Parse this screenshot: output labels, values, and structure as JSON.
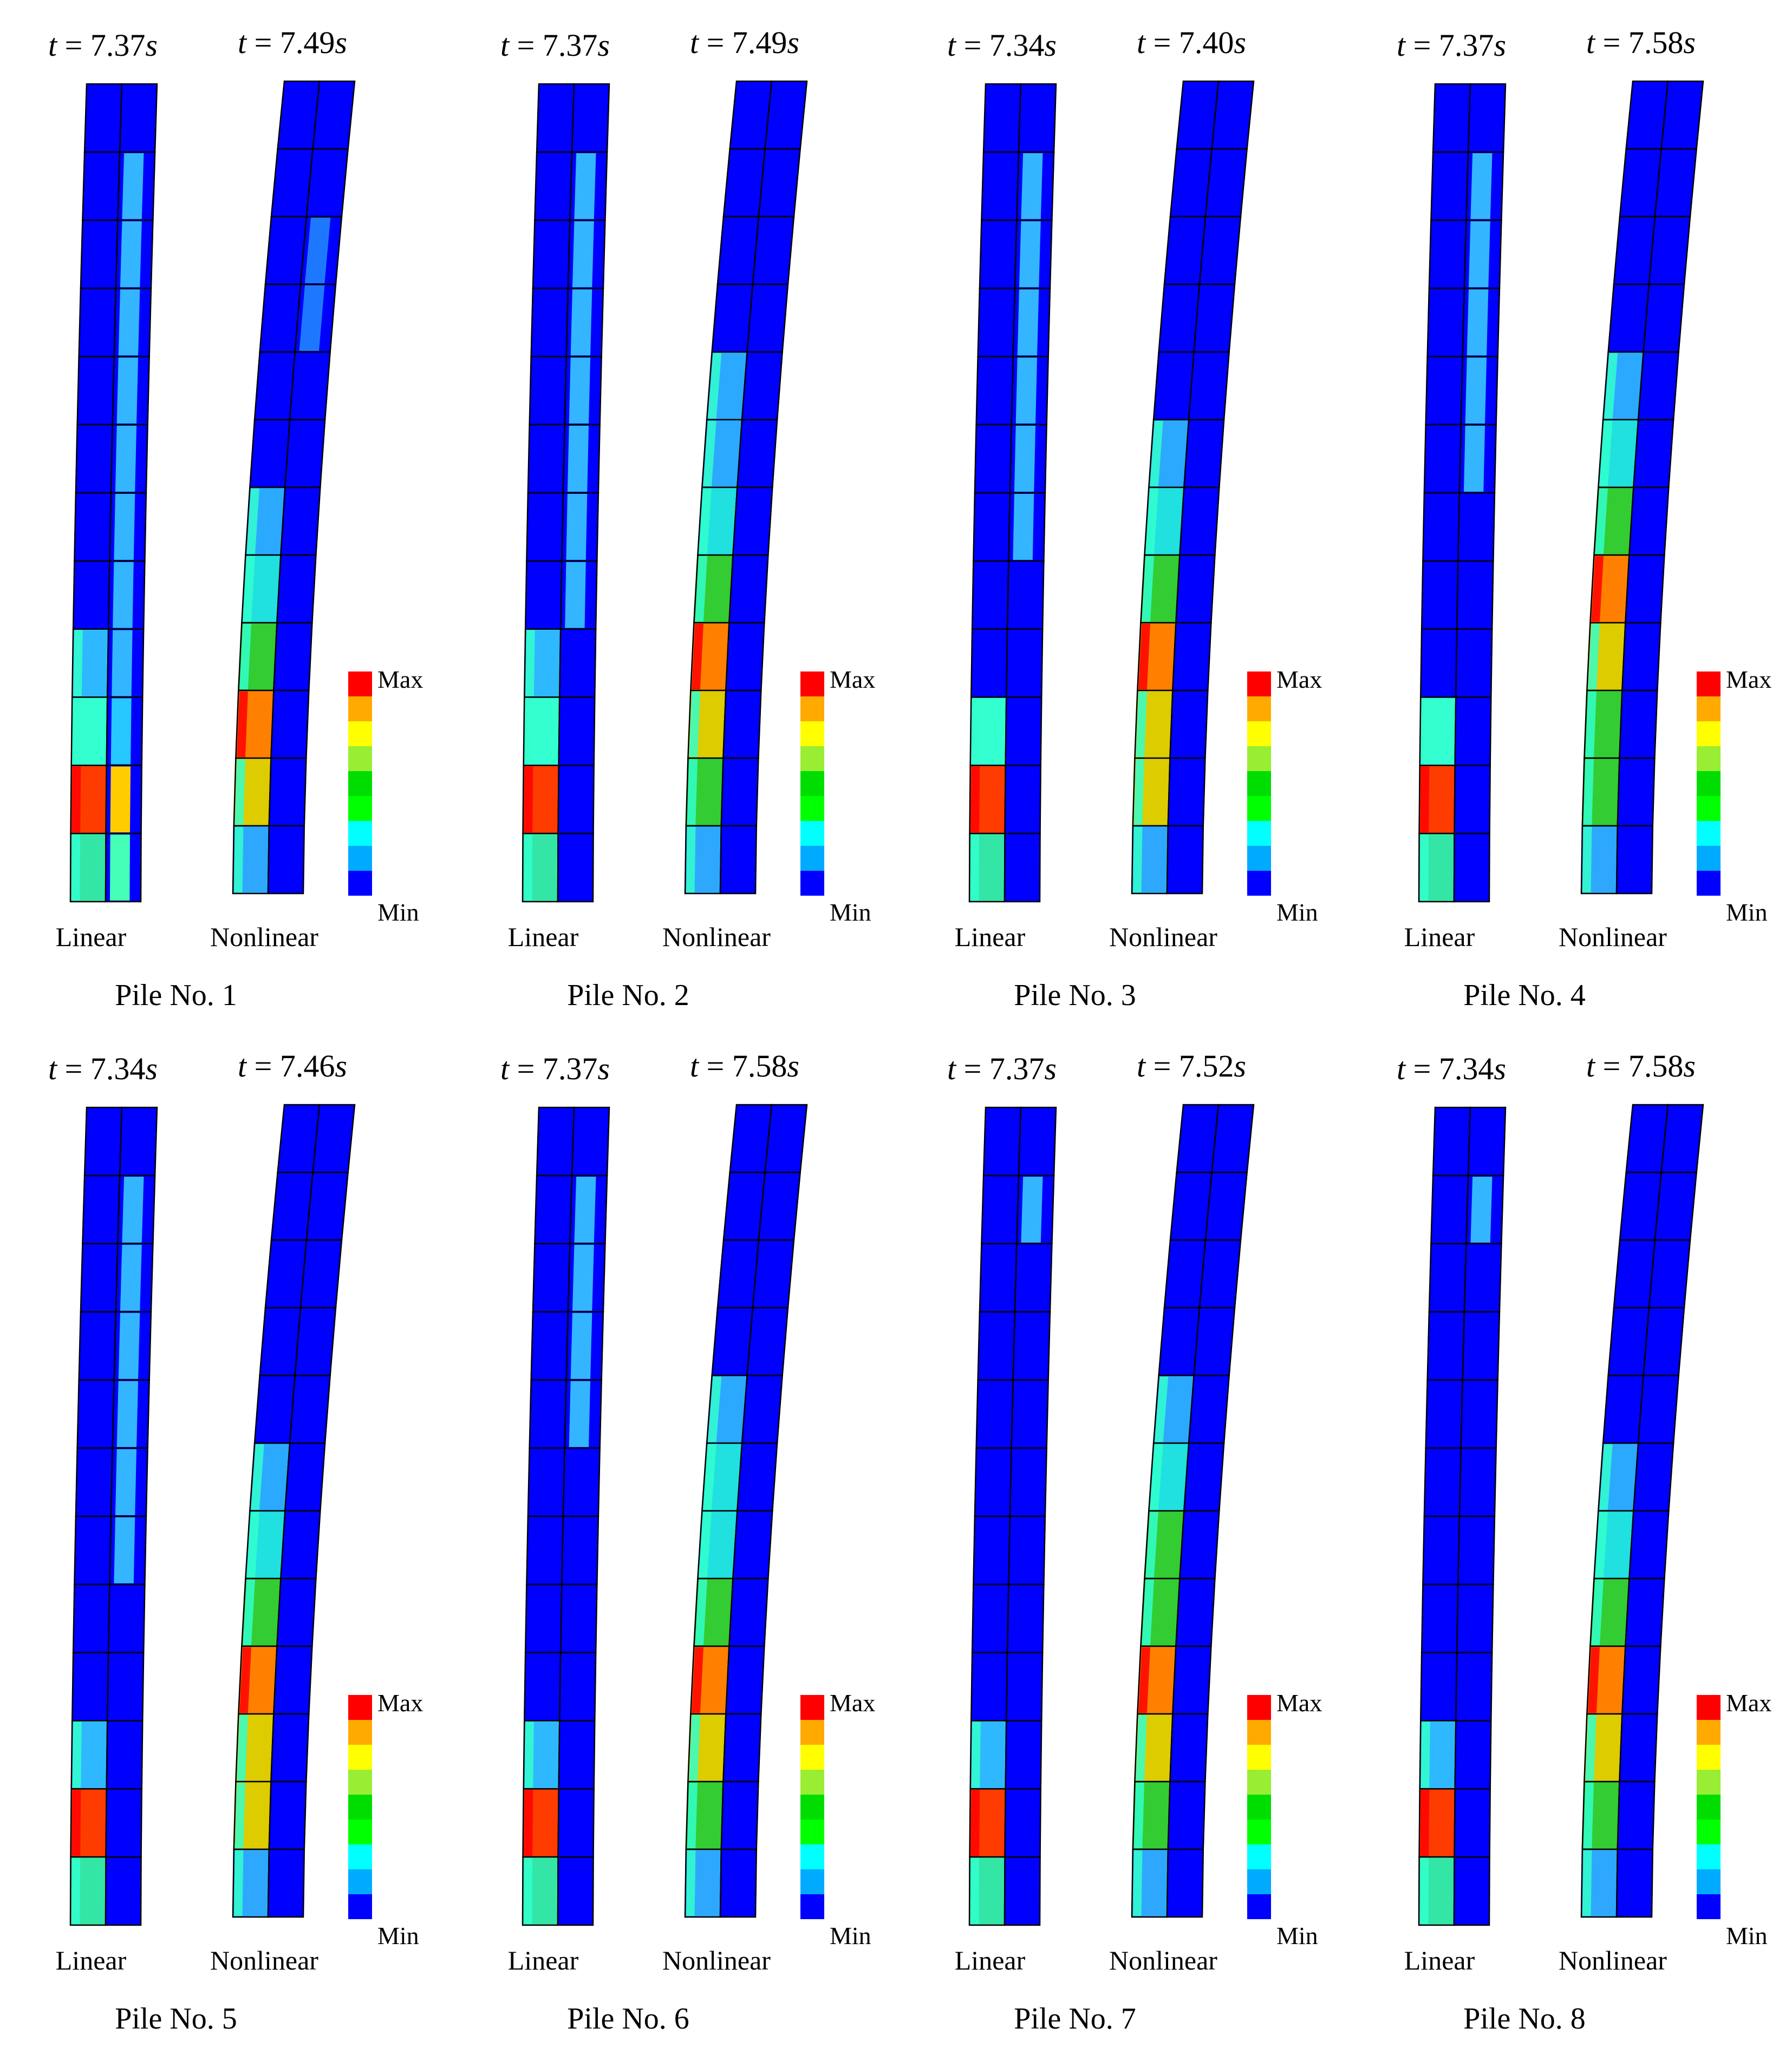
{
  "panels": [
    {
      "pile_label": "Pile No. 1",
      "linear_time": "7.37",
      "nonlinear_time": "7.49",
      "linear_colors": [
        "#0000ff",
        "#0000ff",
        "#0000ff",
        "#0000ff",
        "#0000ff",
        "#0000ff",
        "#0000ff",
        "#0000ff",
        "#2eb8ff",
        "#33ffd0",
        "#ff3c00",
        "#33e6a5"
      ],
      "linear_strip": [
        "#0000ff",
        "#33b5ff",
        "#33b5ff",
        "#33b5ff",
        "#33b5ff",
        "#33b5ff",
        "#33b5ff",
        "#33b5ff",
        "#33b5ff",
        "#26c8ff",
        "#ffcc00",
        "#46ffb6"
      ],
      "nonlinear_colors": [
        "#0000ff",
        "#0000ff",
        "#0000ff",
        "#0000ff",
        "#0000ff",
        "#0000ff",
        "#2ba9ff",
        "#20e0e0",
        "#33cc33",
        "#ff8000",
        "#ddcc00",
        "#2ea8ff"
      ],
      "nonlinear_strip": [
        "#0000ff",
        "#0000ff",
        "#1e78ff",
        "#1e78ff",
        "#0000ff",
        "#0000ff",
        "#0000ff",
        "#0000ff",
        "#0000ff",
        "#0000ff",
        "#0000ff",
        "#0000ff"
      ]
    },
    {
      "pile_label": "Pile No. 2",
      "linear_time": "7.37",
      "nonlinear_time": "7.49",
      "linear_colors": [
        "#0000ff",
        "#0000ff",
        "#0000ff",
        "#0000ff",
        "#0000ff",
        "#0000ff",
        "#0000ff",
        "#0000ff",
        "#2eb8ff",
        "#33ffd0",
        "#ff3c00",
        "#33e6a5"
      ],
      "linear_strip": [
        "#0000ff",
        "#33b5ff",
        "#33b5ff",
        "#33b5ff",
        "#33b5ff",
        "#33b5ff",
        "#33b5ff",
        "#33b5ff",
        "#0000ff",
        "#0000ff",
        "#0000ff",
        "#0000ff"
      ],
      "nonlinear_colors": [
        "#0000ff",
        "#0000ff",
        "#0000ff",
        "#0000ff",
        "#2ba9ff",
        "#2ba9ff",
        "#20e0e0",
        "#33cc33",
        "#ff8000",
        "#ddcc00",
        "#33cc33",
        "#2ea8ff"
      ],
      "nonlinear_strip": [
        "#0000ff",
        "#0000ff",
        "#0000ff",
        "#0000ff",
        "#0000ff",
        "#0000ff",
        "#0000ff",
        "#0000ff",
        "#0000ff",
        "#0000ff",
        "#0000ff",
        "#0000ff"
      ]
    },
    {
      "pile_label": "Pile No. 3",
      "linear_time": "7.34",
      "nonlinear_time": "7.40",
      "linear_colors": [
        "#0000ff",
        "#0000ff",
        "#0000ff",
        "#0000ff",
        "#0000ff",
        "#0000ff",
        "#0000ff",
        "#0000ff",
        "#0000ff",
        "#33ffd0",
        "#ff3c00",
        "#33e6a5"
      ],
      "linear_strip": [
        "#0000ff",
        "#33b5ff",
        "#33b5ff",
        "#33b5ff",
        "#33b5ff",
        "#33b5ff",
        "#33b5ff",
        "#0000ff",
        "#0000ff",
        "#0000ff",
        "#0000ff",
        "#0000ff"
      ],
      "nonlinear_colors": [
        "#0000ff",
        "#0000ff",
        "#0000ff",
        "#0000ff",
        "#0000ff",
        "#2ba9ff",
        "#20e0e0",
        "#33cc33",
        "#ff8000",
        "#ddcc00",
        "#ddcc00",
        "#2ea8ff"
      ],
      "nonlinear_strip": [
        "#0000ff",
        "#0000ff",
        "#0000ff",
        "#0000ff",
        "#0000ff",
        "#0000ff",
        "#0000ff",
        "#0000ff",
        "#0000ff",
        "#0000ff",
        "#0000ff",
        "#0000ff"
      ]
    },
    {
      "pile_label": "Pile No. 4",
      "linear_time": "7.37",
      "nonlinear_time": "7.58",
      "linear_colors": [
        "#0000ff",
        "#0000ff",
        "#0000ff",
        "#0000ff",
        "#0000ff",
        "#0000ff",
        "#0000ff",
        "#0000ff",
        "#0000ff",
        "#33ffd0",
        "#ff3c00",
        "#33e6a5"
      ],
      "linear_strip": [
        "#0000ff",
        "#33b5ff",
        "#33b5ff",
        "#33b5ff",
        "#33b5ff",
        "#33b5ff",
        "#0000ff",
        "#0000ff",
        "#0000ff",
        "#0000ff",
        "#0000ff",
        "#0000ff"
      ],
      "nonlinear_colors": [
        "#0000ff",
        "#0000ff",
        "#0000ff",
        "#0000ff",
        "#2ba9ff",
        "#20e0e0",
        "#33cc33",
        "#ff8000",
        "#ddcc00",
        "#33cc33",
        "#33cc33",
        "#2ea8ff"
      ],
      "nonlinear_strip": [
        "#0000ff",
        "#0000ff",
        "#0000ff",
        "#0000ff",
        "#0000ff",
        "#0000ff",
        "#0000ff",
        "#0000ff",
        "#0000ff",
        "#0000ff",
        "#0000ff",
        "#0000ff"
      ]
    },
    {
      "pile_label": "Pile No. 5",
      "linear_time": "7.34",
      "nonlinear_time": "7.46",
      "linear_colors": [
        "#0000ff",
        "#0000ff",
        "#0000ff",
        "#0000ff",
        "#0000ff",
        "#0000ff",
        "#0000ff",
        "#0000ff",
        "#0000ff",
        "#2eb8ff",
        "#ff3c00",
        "#33e6a5"
      ],
      "linear_strip": [
        "#0000ff",
        "#33b5ff",
        "#33b5ff",
        "#33b5ff",
        "#33b5ff",
        "#33b5ff",
        "#33b5ff",
        "#0000ff",
        "#0000ff",
        "#0000ff",
        "#0000ff",
        "#0000ff"
      ],
      "nonlinear_colors": [
        "#0000ff",
        "#0000ff",
        "#0000ff",
        "#0000ff",
        "#0000ff",
        "#2ba9ff",
        "#20e0e0",
        "#33cc33",
        "#ff8000",
        "#ddcc00",
        "#ddcc00",
        "#2ea8ff"
      ],
      "nonlinear_strip": [
        "#0000ff",
        "#0000ff",
        "#0000ff",
        "#0000ff",
        "#0000ff",
        "#0000ff",
        "#0000ff",
        "#0000ff",
        "#0000ff",
        "#0000ff",
        "#0000ff",
        "#0000ff"
      ]
    },
    {
      "pile_label": "Pile No. 6",
      "linear_time": "7.37",
      "nonlinear_time": "7.58",
      "linear_colors": [
        "#0000ff",
        "#0000ff",
        "#0000ff",
        "#0000ff",
        "#0000ff",
        "#0000ff",
        "#0000ff",
        "#0000ff",
        "#0000ff",
        "#2eb8ff",
        "#ff3c00",
        "#33e6a5"
      ],
      "linear_strip": [
        "#0000ff",
        "#33b5ff",
        "#33b5ff",
        "#33b5ff",
        "#33b5ff",
        "#0000ff",
        "#0000ff",
        "#0000ff",
        "#0000ff",
        "#0000ff",
        "#0000ff",
        "#0000ff"
      ],
      "nonlinear_colors": [
        "#0000ff",
        "#0000ff",
        "#0000ff",
        "#0000ff",
        "#2ba9ff",
        "#20e0e0",
        "#20e0e0",
        "#33cc33",
        "#ff8000",
        "#ddcc00",
        "#33cc33",
        "#2ea8ff"
      ],
      "nonlinear_strip": [
        "#0000ff",
        "#0000ff",
        "#0000ff",
        "#0000ff",
        "#0000ff",
        "#0000ff",
        "#0000ff",
        "#0000ff",
        "#0000ff",
        "#0000ff",
        "#0000ff",
        "#0000ff"
      ]
    },
    {
      "pile_label": "Pile No. 7",
      "linear_time": "7.37",
      "nonlinear_time": "7.52",
      "linear_colors": [
        "#0000ff",
        "#0000ff",
        "#0000ff",
        "#0000ff",
        "#0000ff",
        "#0000ff",
        "#0000ff",
        "#0000ff",
        "#0000ff",
        "#2eb8ff",
        "#ff3c00",
        "#33e6a5"
      ],
      "linear_strip": [
        "#0000ff",
        "#33b5ff",
        "#0000ff",
        "#0000ff",
        "#0000ff",
        "#0000ff",
        "#0000ff",
        "#0000ff",
        "#0000ff",
        "#0000ff",
        "#0000ff",
        "#0000ff"
      ],
      "nonlinear_colors": [
        "#0000ff",
        "#0000ff",
        "#0000ff",
        "#0000ff",
        "#2ba9ff",
        "#20e0e0",
        "#33cc33",
        "#33cc33",
        "#ff8000",
        "#ddcc00",
        "#33cc33",
        "#2ea8ff"
      ],
      "nonlinear_strip": [
        "#0000ff",
        "#0000ff",
        "#0000ff",
        "#0000ff",
        "#0000ff",
        "#0000ff",
        "#0000ff",
        "#0000ff",
        "#0000ff",
        "#0000ff",
        "#0000ff",
        "#0000ff"
      ]
    },
    {
      "pile_label": "Pile No. 8",
      "linear_time": "7.34",
      "nonlinear_time": "7.58",
      "linear_colors": [
        "#0000ff",
        "#0000ff",
        "#0000ff",
        "#0000ff",
        "#0000ff",
        "#0000ff",
        "#0000ff",
        "#0000ff",
        "#0000ff",
        "#2eb8ff",
        "#ff3c00",
        "#33e6a5"
      ],
      "linear_strip": [
        "#0000ff",
        "#33b5ff",
        "#0000ff",
        "#0000ff",
        "#0000ff",
        "#0000ff",
        "#0000ff",
        "#0000ff",
        "#0000ff",
        "#0000ff",
        "#0000ff",
        "#0000ff"
      ],
      "nonlinear_colors": [
        "#0000ff",
        "#0000ff",
        "#0000ff",
        "#0000ff",
        "#0000ff",
        "#2ba9ff",
        "#20e0e0",
        "#33cc33",
        "#ff8000",
        "#ddcc00",
        "#33cc33",
        "#2ea8ff"
      ],
      "nonlinear_strip": [
        "#0000ff",
        "#0000ff",
        "#0000ff",
        "#0000ff",
        "#0000ff",
        "#0000ff",
        "#0000ff",
        "#0000ff",
        "#0000ff",
        "#0000ff",
        "#0000ff",
        "#0000ff"
      ]
    }
  ],
  "labels": {
    "time_prefix": "t = ",
    "time_unit": "s",
    "linear": "Linear",
    "nonlinear": "Nonlinear",
    "legend_max": "Max",
    "legend_min": "Min"
  },
  "legend_colors": [
    "#ff0000",
    "#ffaa00",
    "#ffff00",
    "#99ee33",
    "#00dd00",
    "#00ff00",
    "#00ffff",
    "#00aaff",
    "#0000ff"
  ]
}
